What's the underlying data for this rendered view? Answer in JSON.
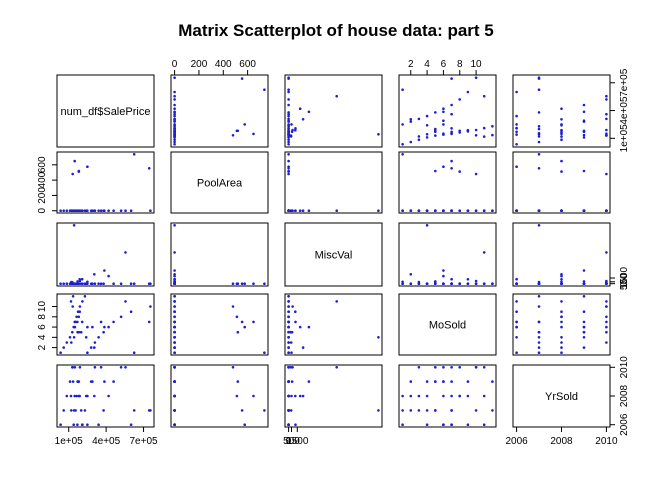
{
  "chart_data": {
    "type": "scatter",
    "title": "Matrix Scatterplot of house data: part 5",
    "point_color": "#1f1fcf",
    "variables": [
      {
        "name": "num_df$SalePrice",
        "range": [
          34900,
          755000
        ],
        "ticks": [
          100000,
          400000,
          700000
        ],
        "tick_labels": [
          "1e+05",
          "4e+05",
          "7e+05"
        ],
        "values": [
          34900,
          60000,
          85000,
          110000,
          129000,
          140000,
          155000,
          163000,
          175000,
          190000,
          210000,
          230000,
          250000,
          280000,
          310000,
          340000,
          380000,
          420000,
          460000,
          520000,
          600000,
          755000,
          118000,
          135000,
          150000,
          170000,
          200000,
          240000,
          290000,
          360000,
          745000,
          625000,
          181000,
          181000,
          250000,
          148000,
          132000,
          121000,
          171000,
          208000,
          305000,
          386000,
          555000,
          143000,
          188000
        ]
      },
      {
        "name": "PoolArea",
        "range": [
          0,
          738
        ],
        "ticks": [
          0,
          200,
          400,
          600
        ],
        "tick_labels": [
          "0",
          "200",
          "400",
          "600"
        ],
        "values": [
          0,
          0,
          0,
          0,
          0,
          0,
          0,
          0,
          0,
          0,
          0,
          0,
          0,
          0,
          0,
          0,
          0,
          0,
          0,
          0,
          0,
          0,
          0,
          0,
          0,
          0,
          0,
          0,
          0,
          0,
          555,
          738,
          512,
          519,
          576,
          648,
          480,
          0,
          0,
          0,
          0,
          0,
          0,
          0,
          0
        ]
      },
      {
        "name": "MiscVal",
        "range": [
          0,
          15500
        ],
        "ticks": [
          0,
          500,
          1500
        ],
        "tick_labels": [
          "0",
          "500",
          "1500"
        ],
        "values": [
          0,
          0,
          0,
          0,
          400,
          0,
          0,
          0,
          0,
          700,
          0,
          0,
          500,
          0,
          0,
          0,
          0,
          2000,
          0,
          0,
          0,
          0,
          0,
          0,
          0,
          0,
          0,
          0,
          0,
          0,
          0,
          0,
          0,
          0,
          0,
          0,
          0,
          450,
          600,
          1200,
          2500,
          3500,
          8300,
          15500,
          1150
        ]
      },
      {
        "name": "MoSold",
        "range": [
          1,
          12
        ],
        "ticks": [
          2,
          4,
          6,
          8,
          10
        ],
        "tick_labels": [
          "2",
          "4",
          "6",
          "8",
          "10"
        ],
        "values": [
          1,
          2,
          3,
          4,
          5,
          6,
          7,
          8,
          9,
          10,
          11,
          12,
          1,
          2,
          3,
          4,
          5,
          6,
          7,
          8,
          9,
          10,
          11,
          12,
          6,
          7,
          5,
          4,
          6,
          7,
          7,
          1,
          8,
          5,
          6,
          7,
          10,
          3,
          5,
          7,
          2,
          6,
          11,
          4,
          9
        ]
      },
      {
        "name": "YrSold",
        "range": [
          2006,
          2010
        ],
        "ticks": [
          2006,
          2008,
          2010
        ],
        "tick_labels": [
          "2006",
          "2008",
          "2010"
        ],
        "values": [
          2006,
          2007,
          2008,
          2009,
          2010,
          2006,
          2007,
          2008,
          2009,
          2010,
          2006,
          2007,
          2008,
          2009,
          2010,
          2006,
          2007,
          2008,
          2009,
          2010,
          2006,
          2007,
          2008,
          2009,
          2010,
          2006,
          2007,
          2008,
          2009,
          2010,
          2007,
          2007,
          2008,
          2009,
          2006,
          2008,
          2010,
          2007,
          2009,
          2006,
          2008,
          2009,
          2010,
          2007,
          2008
        ]
      }
    ]
  }
}
